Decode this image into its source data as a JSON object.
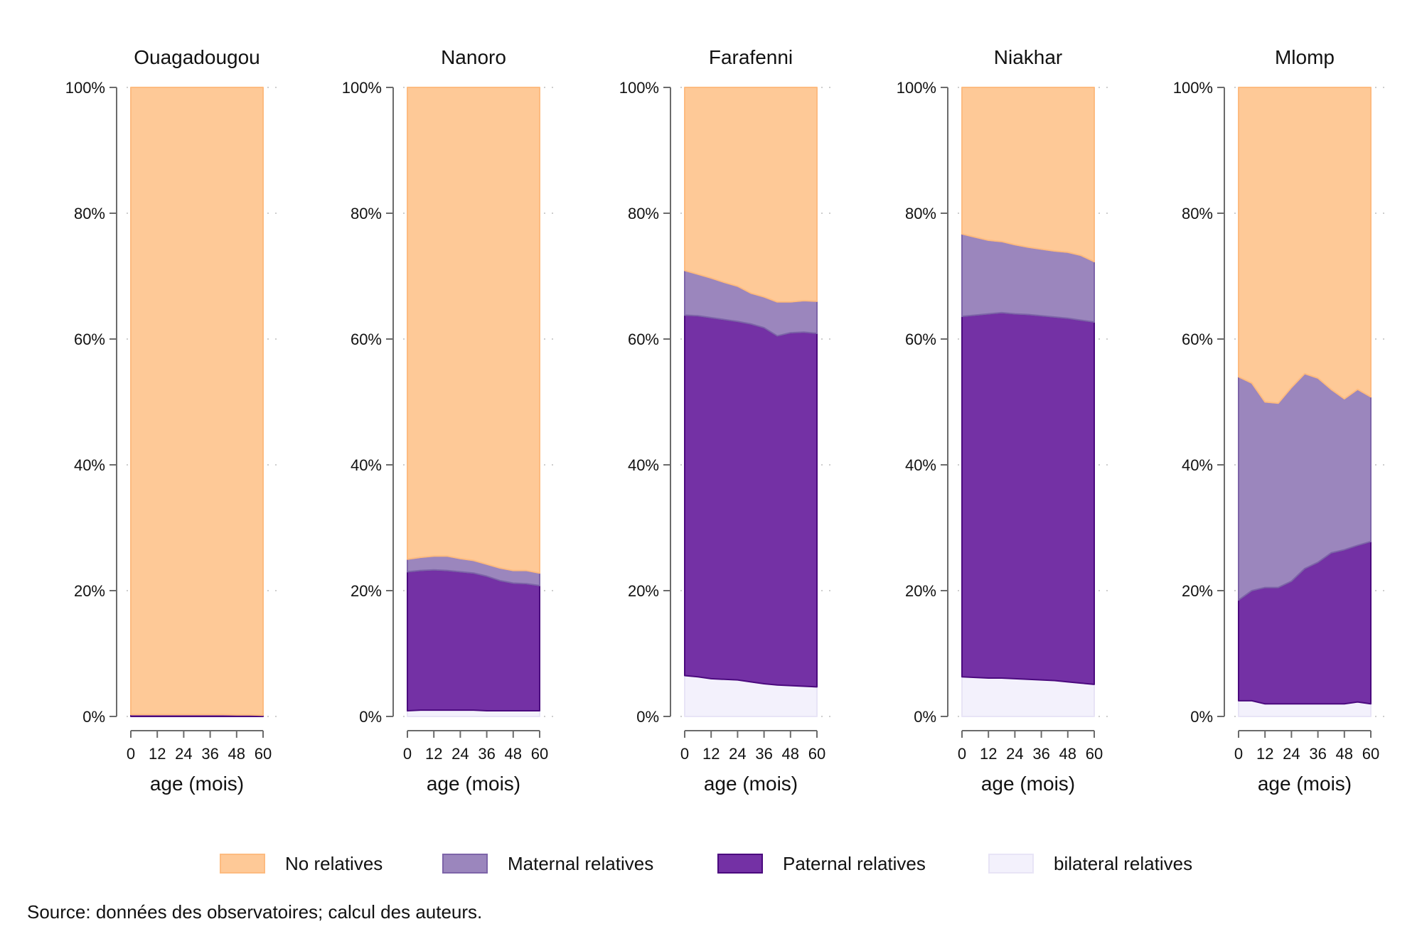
{
  "chart_data": {
    "type": "area",
    "stacked": true,
    "percent": true,
    "xlabel": "age (mois)",
    "x": [
      0,
      6,
      12,
      18,
      24,
      30,
      36,
      42,
      48,
      54,
      60
    ],
    "xticks": [
      0,
      12,
      24,
      36,
      48,
      60
    ],
    "ylim": [
      0,
      100
    ],
    "yticks": [
      "0%",
      "20%",
      "40%",
      "60%",
      "80%",
      "100%"
    ],
    "grid": true,
    "legend_position": "bottom",
    "series_order": [
      "bilateral relatives",
      "Paternal relatives",
      "Maternal relatives",
      "No relatives"
    ],
    "colors": {
      "No relatives": "#fec997",
      "Maternal relatives": "#9b86bd",
      "Paternal relatives": "#7431a5",
      "bilateral relatives": "#f3f1fc"
    },
    "edge_colors": {
      "No relatives": "#fdbb80",
      "Maternal relatives": "#7d64a8",
      "Paternal relatives": "#4b0a7e",
      "bilateral relatives": "#e8e4f6"
    },
    "panels": [
      {
        "title": "Ouagadougou",
        "series": [
          {
            "name": "bilateral relatives",
            "values": [
              0,
              0,
              0,
              0,
              0,
              0,
              0,
              0,
              0,
              0,
              0
            ]
          },
          {
            "name": "Paternal relatives",
            "values": [
              0.3,
              0.3,
              0.3,
              0.3,
              0.3,
              0.3,
              0.3,
              0.3,
              0.25,
              0.25,
              0.2
            ]
          },
          {
            "name": "Maternal relatives",
            "values": [
              0,
              0,
              0,
              0,
              0,
              0,
              0,
              0,
              0,
              0,
              0
            ]
          },
          {
            "name": "No relatives",
            "values": [
              99.7,
              99.7,
              99.7,
              99.7,
              99.7,
              99.7,
              99.7,
              99.7,
              99.75,
              99.75,
              99.8
            ]
          }
        ]
      },
      {
        "title": "Nanoro",
        "series": [
          {
            "name": "bilateral relatives",
            "values": [
              0.9,
              1.0,
              1.0,
              1.0,
              1.0,
              1.0,
              0.9,
              0.9,
              0.9,
              0.9,
              0.9
            ]
          },
          {
            "name": "Paternal relatives",
            "values": [
              22.1,
              22.2,
              22.3,
              22.2,
              22.0,
              21.8,
              21.4,
              20.7,
              20.3,
              20.2,
              19.9
            ]
          },
          {
            "name": "Maternal relatives",
            "values": [
              2.0,
              2.1,
              2.2,
              2.3,
              2.1,
              2.0,
              1.9,
              2.0,
              2.0,
              2.1,
              2.0
            ]
          },
          {
            "name": "No relatives",
            "values": [
              75.0,
              74.7,
              74.5,
              74.5,
              74.9,
              75.2,
              75.8,
              76.4,
              76.8,
              76.8,
              77.2
            ]
          }
        ]
      },
      {
        "title": "Farafenni",
        "series": [
          {
            "name": "bilateral relatives",
            "values": [
              6.5,
              6.3,
              6.0,
              5.9,
              5.8,
              5.5,
              5.2,
              5.0,
              4.9,
              4.8,
              4.7
            ]
          },
          {
            "name": "Paternal relatives",
            "values": [
              57.3,
              57.4,
              57.4,
              57.2,
              57.0,
              56.9,
              56.6,
              55.5,
              56.1,
              56.3,
              56.2
            ]
          },
          {
            "name": "Maternal relatives",
            "values": [
              7.1,
              6.6,
              6.3,
              5.9,
              5.6,
              4.9,
              4.9,
              5.4,
              4.9,
              5.0,
              5.1
            ]
          },
          {
            "name": "No relatives",
            "values": [
              29.1,
              29.7,
              30.3,
              31.0,
              31.6,
              32.7,
              33.3,
              34.1,
              34.1,
              33.9,
              34.0
            ]
          }
        ]
      },
      {
        "title": "Niakhar",
        "series": [
          {
            "name": "bilateral relatives",
            "values": [
              6.3,
              6.2,
              6.1,
              6.1,
              6.0,
              5.9,
              5.8,
              5.7,
              5.5,
              5.3,
              5.1
            ]
          },
          {
            "name": "Paternal relatives",
            "values": [
              57.3,
              57.6,
              57.9,
              58.1,
              58.0,
              58.0,
              57.9,
              57.8,
              57.8,
              57.7,
              57.6
            ]
          },
          {
            "name": "Maternal relatives",
            "values": [
              13.1,
              12.4,
              11.7,
              11.3,
              11.0,
              10.7,
              10.6,
              10.5,
              10.5,
              10.3,
              9.6
            ]
          },
          {
            "name": "No relatives",
            "values": [
              23.3,
              23.8,
              24.3,
              24.5,
              25.0,
              25.4,
              25.7,
              26.0,
              26.2,
              26.7,
              27.7
            ]
          }
        ]
      },
      {
        "title": "Mlomp",
        "series": [
          {
            "name": "bilateral relatives",
            "values": [
              2.5,
              2.5,
              2.0,
              2.0,
              2.0,
              2.0,
              2.0,
              2.0,
              2.0,
              2.3,
              2.0
            ]
          },
          {
            "name": "Paternal relatives",
            "values": [
              16.0,
              17.5,
              18.5,
              18.5,
              19.5,
              21.5,
              22.5,
              24.0,
              24.5,
              24.9,
              25.8
            ]
          },
          {
            "name": "Maternal relatives",
            "values": [
              35.5,
              33.0,
              29.5,
              29.3,
              30.8,
              31.0,
              29.3,
              26.0,
              24.0,
              24.8,
              23.0
            ]
          },
          {
            "name": "No relatives",
            "values": [
              46.0,
              47.0,
              50.0,
              50.2,
              47.7,
              45.5,
              46.2,
              48.0,
              49.5,
              48.0,
              49.2
            ]
          }
        ]
      }
    ]
  },
  "legend": {
    "items": [
      {
        "label": "No relatives",
        "color": "#fec997",
        "edge": "#fdbb80"
      },
      {
        "label": "Maternal relatives",
        "color": "#9b86bd",
        "edge": "#7d64a8"
      },
      {
        "label": "Paternal relatives",
        "color": "#7431a5",
        "edge": "#4b0a7e"
      },
      {
        "label": "bilateral relatives",
        "color": "#f3f1fc",
        "edge": "#e8e4f6"
      }
    ]
  },
  "source": "Source: données des observatoires; calcul des auteurs."
}
